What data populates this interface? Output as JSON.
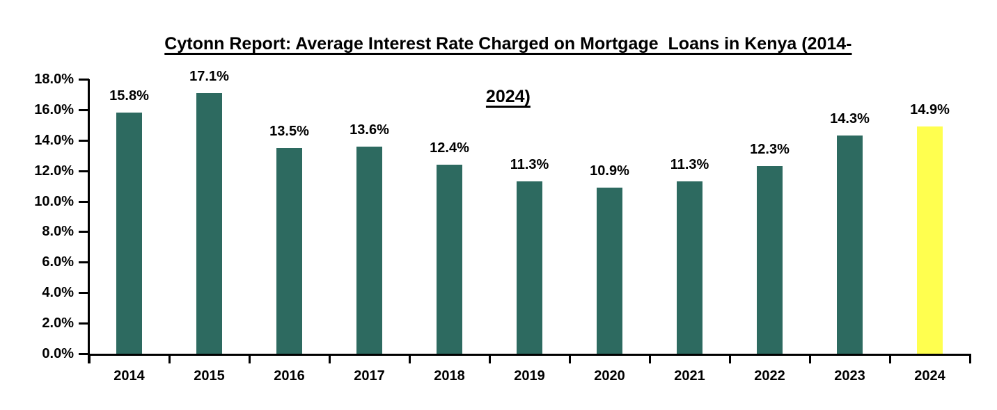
{
  "header": {
    "title_line1": "Cytonn Report: Average Interest Rate Charged on Mortgage  Loans in Kenya (2014-",
    "title_line2": "2024)"
  },
  "chart_data": {
    "type": "bar",
    "title": "Cytonn Report: Average Interest Rate Charged on Mortgage  Loans in Kenya (2014-2024)",
    "xlabel": "",
    "ylabel": "",
    "categories": [
      "2014",
      "2015",
      "2016",
      "2017",
      "2018",
      "2019",
      "2020",
      "2021",
      "2022",
      "2023",
      "2024"
    ],
    "values": [
      15.8,
      17.1,
      13.5,
      13.6,
      12.4,
      11.3,
      10.9,
      11.3,
      12.3,
      14.3,
      14.9
    ],
    "value_labels": [
      "15.8%",
      "17.1%",
      "13.5%",
      "13.6%",
      "12.4%",
      "11.3%",
      "10.9%",
      "11.3%",
      "12.3%",
      "14.3%",
      "14.9%"
    ],
    "ylim": [
      0,
      18
    ],
    "y_ticks": [
      {
        "value": 0,
        "label": "0.0%"
      },
      {
        "value": 2,
        "label": "2.0%"
      },
      {
        "value": 4,
        "label": "4.0%"
      },
      {
        "value": 6,
        "label": "6.0%"
      },
      {
        "value": 8,
        "label": "8.0%"
      },
      {
        "value": 10,
        "label": "10.0%"
      },
      {
        "value": 12,
        "label": "12.0%"
      },
      {
        "value": 14,
        "label": "14.0%"
      },
      {
        "value": 16,
        "label": "16.0%"
      },
      {
        "value": 18,
        "label": "18.0%"
      }
    ],
    "grid": false,
    "legend": false,
    "highlight_index": 10,
    "bar_color": "#2D6A60",
    "highlight_color": "#FFFF4F",
    "axis_color": "#000000"
  }
}
